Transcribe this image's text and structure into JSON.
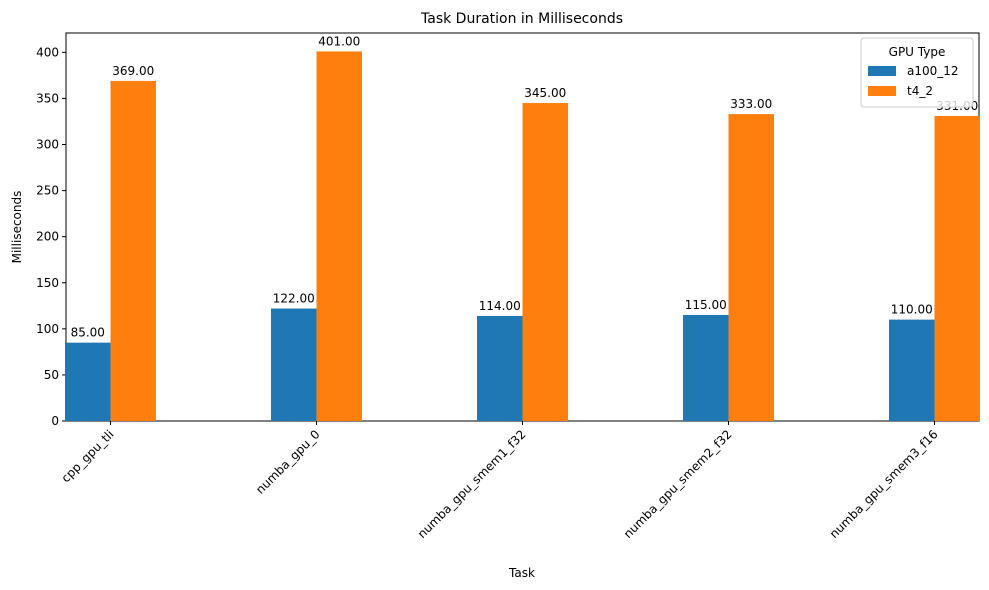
{
  "chart_data": {
    "type": "bar",
    "title": "Task Duration in Milliseconds",
    "xlabel": "Task",
    "ylabel": "Milliseconds",
    "categories": [
      "cpp_gpu_tli",
      "numba_gpu_0",
      "numba_gpu_smem1_f32",
      "numba_gpu_smem2_f32",
      "numba_gpu_smem3_f16"
    ],
    "series": [
      {
        "name": "a100_12",
        "color": "#1f77b4",
        "values": [
          85,
          122,
          114,
          115,
          110
        ],
        "labels": [
          "85.00",
          "122.00",
          "114.00",
          "115.00",
          "110.00"
        ]
      },
      {
        "name": "t4_2",
        "color": "#ff7f0e",
        "values": [
          369,
          401,
          345,
          333,
          331
        ],
        "labels": [
          "369.00",
          "401.00",
          "345.00",
          "333.00",
          "331.00"
        ]
      }
    ],
    "ylim": [
      0,
      421
    ],
    "yticks": [
      0,
      50,
      100,
      150,
      200,
      250,
      300,
      350,
      400
    ],
    "ytick_labels": [
      "0",
      "50",
      "100",
      "150",
      "200",
      "250",
      "300",
      "350",
      "400"
    ],
    "grid": false,
    "legend": {
      "title": "GPU Type",
      "position": "top-right"
    }
  }
}
